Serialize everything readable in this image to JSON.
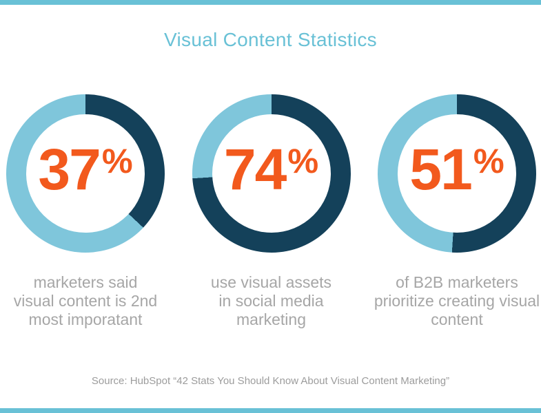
{
  "page": {
    "title": "Visual Content Statistics",
    "source_line": "Source: HubSpot “42 Stats You Should Know About Visual Content Marketing”"
  },
  "colors": {
    "accent_teal": "#69c1d6",
    "ring_dark": "#14415a",
    "ring_light": "#7fc6db",
    "value_orange": "#f2591d",
    "caption_gray": "#a6a6a6",
    "source_gray": "#9c9c9c"
  },
  "chart_data": {
    "type": "pie",
    "subtype": "donut",
    "title": "Visual Content Statistics",
    "legend": "none",
    "segment_colors": {
      "filled": "#14415a",
      "remainder": "#7fc6db"
    },
    "items": [
      {
        "value": 37,
        "unit": "%",
        "label": "marketers said\nvisual content is 2nd\nmost imporatant"
      },
      {
        "value": 74,
        "unit": "%",
        "label": "use visual assets\nin social media\nmarketing"
      },
      {
        "value": 51,
        "unit": "%",
        "label": "of B2B marketers\nprioritize creating visual\ncontent"
      }
    ],
    "source": "Source: HubSpot “42 Stats You Should Know About Visual Content Marketing”"
  }
}
